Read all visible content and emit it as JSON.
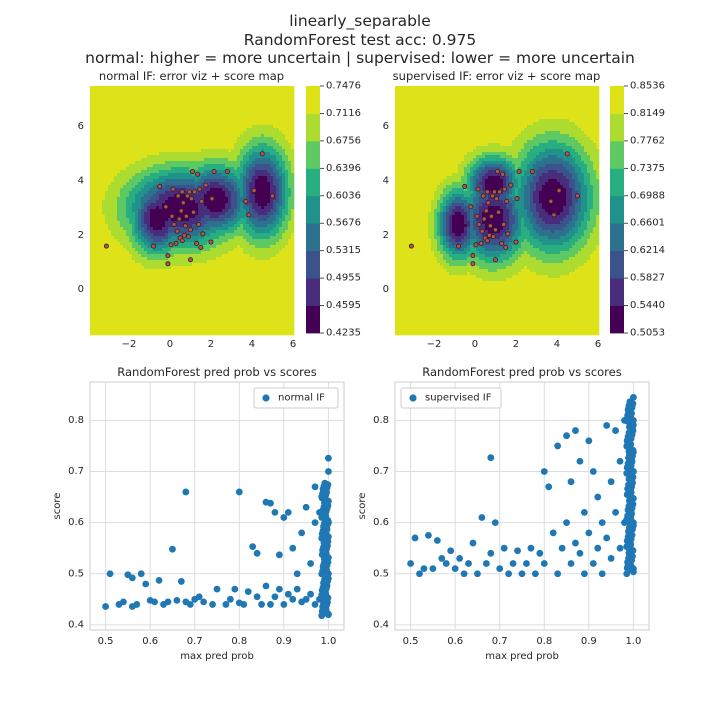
{
  "suptitle": [
    "linearly_separable",
    "RandomForest test acc: 0.975",
    "normal: higher = more uncertain | supervised: lower = more uncertain"
  ],
  "chart_data": [
    {
      "type": "heatmap",
      "title": "normal IF: error viz + score map",
      "x_ticks": [
        -2,
        0,
        2,
        4,
        6
      ],
      "y_ticks": [
        0,
        2,
        4,
        6
      ],
      "xlim": [
        -3.9,
        6.0
      ],
      "ylim": [
        -1.6,
        7.5
      ],
      "colorbar_ticks": [
        "0.7476",
        "0.7116",
        "0.6756",
        "0.6396",
        "0.6036",
        "0.5676",
        "0.5315",
        "0.4955",
        "0.4595",
        "0.4235"
      ],
      "colormap": [
        "#440154",
        "#472d7b",
        "#3b528b",
        "#2c728e",
        "#21918c",
        "#28ae80",
        "#5ec962",
        "#addc30",
        "#dde318"
      ],
      "points_color": "#c0504d",
      "points": [
        [
          -3.1,
          1.6
        ],
        [
          -0.8,
          1.6
        ],
        [
          -0.5,
          3.8
        ],
        [
          -0.2,
          3.05
        ],
        [
          -0.1,
          1.25
        ],
        [
          -0.1,
          0.95
        ],
        [
          0.05,
          1.65
        ],
        [
          0.1,
          2.7
        ],
        [
          0.15,
          3.7
        ],
        [
          0.2,
          2.4
        ],
        [
          0.3,
          1.7
        ],
        [
          0.35,
          2.15
        ],
        [
          0.4,
          3.45
        ],
        [
          0.45,
          2.6
        ],
        [
          0.5,
          1.9
        ],
        [
          0.55,
          2.9
        ],
        [
          0.6,
          1.8
        ],
        [
          0.6,
          3.6
        ],
        [
          0.65,
          3.2
        ],
        [
          0.7,
          2.0
        ],
        [
          0.75,
          2.35
        ],
        [
          0.8,
          2.7
        ],
        [
          0.85,
          3.45
        ],
        [
          0.9,
          1.95
        ],
        [
          0.95,
          3.6
        ],
        [
          1.0,
          1.1
        ],
        [
          1.0,
          2.2
        ],
        [
          1.05,
          3.35
        ],
        [
          1.1,
          4.35
        ],
        [
          1.15,
          2.85
        ],
        [
          1.2,
          3.6
        ],
        [
          1.3,
          1.7
        ],
        [
          1.35,
          4.25
        ],
        [
          1.4,
          2.4
        ],
        [
          1.45,
          3.7
        ],
        [
          1.5,
          1.55
        ],
        [
          1.55,
          3.25
        ],
        [
          1.6,
          2.05
        ],
        [
          1.75,
          3.85
        ],
        [
          2.0,
          1.75
        ],
        [
          2.05,
          3.35
        ],
        [
          2.15,
          4.35
        ],
        [
          2.8,
          4.35
        ],
        [
          3.7,
          3.25
        ],
        [
          3.85,
          2.75
        ],
        [
          4.1,
          3.65
        ],
        [
          4.5,
          5.0
        ],
        [
          5.0,
          3.45
        ]
      ]
    },
    {
      "type": "heatmap",
      "title": "supervised IF: error viz + score map",
      "x_ticks": [
        -2,
        0,
        2,
        4,
        6
      ],
      "y_ticks": [
        0,
        2,
        4,
        6
      ],
      "xlim": [
        -3.9,
        6.0
      ],
      "ylim": [
        -1.6,
        7.5
      ],
      "colorbar_ticks": [
        "0.8536",
        "0.8149",
        "0.7762",
        "0.7375",
        "0.6988",
        "0.6601",
        "0.6214",
        "0.5827",
        "0.5440",
        "0.5053"
      ],
      "colormap": [
        "#440154",
        "#472d7b",
        "#3b528b",
        "#2c728e",
        "#21918c",
        "#28ae80",
        "#5ec962",
        "#addc30",
        "#dde318"
      ],
      "points_color": "#c0504d",
      "points": [
        [
          -3.1,
          1.6
        ],
        [
          -0.8,
          1.6
        ],
        [
          -0.5,
          3.8
        ],
        [
          -0.2,
          3.05
        ],
        [
          -0.1,
          1.25
        ],
        [
          -0.1,
          0.95
        ],
        [
          0.05,
          1.65
        ],
        [
          0.1,
          2.7
        ],
        [
          0.15,
          3.7
        ],
        [
          0.2,
          2.4
        ],
        [
          0.3,
          1.7
        ],
        [
          0.35,
          2.15
        ],
        [
          0.4,
          3.45
        ],
        [
          0.45,
          2.6
        ],
        [
          0.5,
          1.9
        ],
        [
          0.55,
          2.9
        ],
        [
          0.6,
          1.8
        ],
        [
          0.6,
          3.6
        ],
        [
          0.65,
          3.2
        ],
        [
          0.7,
          2.0
        ],
        [
          0.75,
          2.35
        ],
        [
          0.8,
          2.7
        ],
        [
          0.85,
          3.45
        ],
        [
          0.9,
          1.95
        ],
        [
          0.95,
          3.6
        ],
        [
          1.0,
          1.1
        ],
        [
          1.0,
          2.2
        ],
        [
          1.05,
          3.35
        ],
        [
          1.1,
          4.35
        ],
        [
          1.15,
          2.85
        ],
        [
          1.2,
          3.6
        ],
        [
          1.3,
          1.7
        ],
        [
          1.35,
          4.25
        ],
        [
          1.4,
          2.4
        ],
        [
          1.45,
          3.7
        ],
        [
          1.5,
          1.55
        ],
        [
          1.55,
          3.25
        ],
        [
          1.6,
          2.05
        ],
        [
          1.75,
          3.85
        ],
        [
          2.0,
          1.75
        ],
        [
          2.05,
          3.35
        ],
        [
          2.15,
          4.35
        ],
        [
          2.8,
          4.35
        ],
        [
          3.7,
          3.25
        ],
        [
          3.85,
          2.75
        ],
        [
          4.1,
          3.65
        ],
        [
          4.5,
          5.0
        ],
        [
          5.0,
          3.45
        ]
      ]
    },
    {
      "type": "scatter",
      "title": "RandomForest pred prob vs scores",
      "xlabel": "max pred prob",
      "ylabel": "score",
      "xlim": [
        0.465,
        1.035
      ],
      "ylim": [
        0.39,
        0.875
      ],
      "x_ticks": [
        0.5,
        0.6,
        0.7,
        0.8,
        0.9,
        1.0
      ],
      "y_ticks": [
        0.4,
        0.5,
        0.6,
        0.7,
        0.8
      ],
      "legend": "normal IF",
      "legend_position": "upper right",
      "color": "#1f77b4",
      "grid": true,
      "points": [
        [
          0.5,
          0.436
        ],
        [
          0.51,
          0.5
        ],
        [
          0.53,
          0.44
        ],
        [
          0.54,
          0.445
        ],
        [
          0.55,
          0.498
        ],
        [
          0.56,
          0.436
        ],
        [
          0.56,
          0.492
        ],
        [
          0.57,
          0.44
        ],
        [
          0.58,
          0.5
        ],
        [
          0.59,
          0.48
        ],
        [
          0.6,
          0.448
        ],
        [
          0.61,
          0.445
        ],
        [
          0.62,
          0.487
        ],
        [
          0.63,
          0.44
        ],
        [
          0.64,
          0.445
        ],
        [
          0.65,
          0.548
        ],
        [
          0.66,
          0.448
        ],
        [
          0.67,
          0.485
        ],
        [
          0.68,
          0.66
        ],
        [
          0.68,
          0.445
        ],
        [
          0.69,
          0.44
        ],
        [
          0.7,
          0.45
        ],
        [
          0.71,
          0.455
        ],
        [
          0.72,
          0.445
        ],
        [
          0.74,
          0.44
        ],
        [
          0.75,
          0.47
        ],
        [
          0.77,
          0.44
        ],
        [
          0.78,
          0.45
        ],
        [
          0.79,
          0.47
        ],
        [
          0.8,
          0.443
        ],
        [
          0.8,
          0.66
        ],
        [
          0.81,
          0.44
        ],
        [
          0.82,
          0.465
        ],
        [
          0.83,
          0.553
        ],
        [
          0.84,
          0.455
        ],
        [
          0.84,
          0.54
        ],
        [
          0.85,
          0.44
        ],
        [
          0.86,
          0.64
        ],
        [
          0.86,
          0.476
        ],
        [
          0.87,
          0.638
        ],
        [
          0.87,
          0.44
        ],
        [
          0.88,
          0.455
        ],
        [
          0.88,
          0.62
        ],
        [
          0.89,
          0.47
        ],
        [
          0.89,
          0.537
        ],
        [
          0.9,
          0.44
        ],
        [
          0.9,
          0.61
        ],
        [
          0.91,
          0.46
        ],
        [
          0.91,
          0.62
        ],
        [
          0.92,
          0.45
        ],
        [
          0.92,
          0.55
        ],
        [
          0.93,
          0.47
        ],
        [
          0.93,
          0.5
        ],
        [
          0.94,
          0.445
        ],
        [
          0.94,
          0.58
        ],
        [
          0.95,
          0.45
        ],
        [
          0.95,
          0.63
        ],
        [
          0.96,
          0.46
        ],
        [
          0.96,
          0.52
        ],
        [
          0.97,
          0.44
        ],
        [
          0.97,
          0.6
        ],
        [
          0.97,
          0.67
        ],
        [
          0.98,
          0.45
        ],
        [
          0.98,
          0.62
        ],
        [
          0.99,
          0.43
        ],
        [
          0.99,
          0.65
        ],
        [
          1.0,
          0.42
        ],
        [
          1.0,
          0.5
        ],
        [
          1.0,
          0.6
        ],
        [
          1.0,
          0.7
        ],
        [
          1.0,
          0.726
        ]
      ]
    },
    {
      "type": "scatter",
      "title": "RandomForest pred prob vs scores",
      "xlabel": "max pred prob",
      "ylabel": "score",
      "xlim": [
        0.465,
        1.035
      ],
      "ylim": [
        0.39,
        0.875
      ],
      "x_ticks": [
        0.5,
        0.6,
        0.7,
        0.8,
        0.9,
        1.0
      ],
      "y_ticks": [
        0.4,
        0.5,
        0.6,
        0.7,
        0.8
      ],
      "legend": "supervised IF",
      "legend_position": "upper left",
      "color": "#1f77b4",
      "grid": true,
      "points": [
        [
          0.5,
          0.52
        ],
        [
          0.51,
          0.57
        ],
        [
          0.52,
          0.5
        ],
        [
          0.53,
          0.51
        ],
        [
          0.54,
          0.575
        ],
        [
          0.55,
          0.51
        ],
        [
          0.56,
          0.565
        ],
        [
          0.57,
          0.53
        ],
        [
          0.58,
          0.52
        ],
        [
          0.59,
          0.545
        ],
        [
          0.6,
          0.51
        ],
        [
          0.61,
          0.53
        ],
        [
          0.62,
          0.5
        ],
        [
          0.63,
          0.52
        ],
        [
          0.64,
          0.56
        ],
        [
          0.65,
          0.5
        ],
        [
          0.66,
          0.61
        ],
        [
          0.67,
          0.52
        ],
        [
          0.68,
          0.727
        ],
        [
          0.68,
          0.54
        ],
        [
          0.69,
          0.6
        ],
        [
          0.7,
          0.51
        ],
        [
          0.71,
          0.55
        ],
        [
          0.72,
          0.5
        ],
        [
          0.73,
          0.52
        ],
        [
          0.74,
          0.545
        ],
        [
          0.75,
          0.5
        ],
        [
          0.76,
          0.52
        ],
        [
          0.77,
          0.55
        ],
        [
          0.78,
          0.5
        ],
        [
          0.79,
          0.54
        ],
        [
          0.8,
          0.52
        ],
        [
          0.8,
          0.7
        ],
        [
          0.81,
          0.67
        ],
        [
          0.82,
          0.58
        ],
        [
          0.83,
          0.5
        ],
        [
          0.83,
          0.75
        ],
        [
          0.84,
          0.55
        ],
        [
          0.85,
          0.77
        ],
        [
          0.85,
          0.6
        ],
        [
          0.86,
          0.52
        ],
        [
          0.86,
          0.68
        ],
        [
          0.87,
          0.78
        ],
        [
          0.87,
          0.56
        ],
        [
          0.88,
          0.54
        ],
        [
          0.88,
          0.72
        ],
        [
          0.89,
          0.62
        ],
        [
          0.89,
          0.5
        ],
        [
          0.9,
          0.76
        ],
        [
          0.9,
          0.58
        ],
        [
          0.91,
          0.52
        ],
        [
          0.91,
          0.7
        ],
        [
          0.92,
          0.65
        ],
        [
          0.92,
          0.55
        ],
        [
          0.93,
          0.6
        ],
        [
          0.93,
          0.5
        ],
        [
          0.94,
          0.79
        ],
        [
          0.94,
          0.57
        ],
        [
          0.95,
          0.68
        ],
        [
          0.95,
          0.53
        ],
        [
          0.96,
          0.62
        ],
        [
          0.96,
          0.78
        ],
        [
          0.97,
          0.55
        ],
        [
          0.97,
          0.72
        ],
        [
          0.98,
          0.6
        ],
        [
          0.98,
          0.8
        ],
        [
          0.99,
          0.52
        ],
        [
          0.99,
          0.74
        ],
        [
          1.0,
          0.51
        ],
        [
          1.0,
          0.6
        ],
        [
          1.0,
          0.7
        ],
        [
          1.0,
          0.8
        ],
        [
          1.0,
          0.845
        ]
      ]
    }
  ]
}
